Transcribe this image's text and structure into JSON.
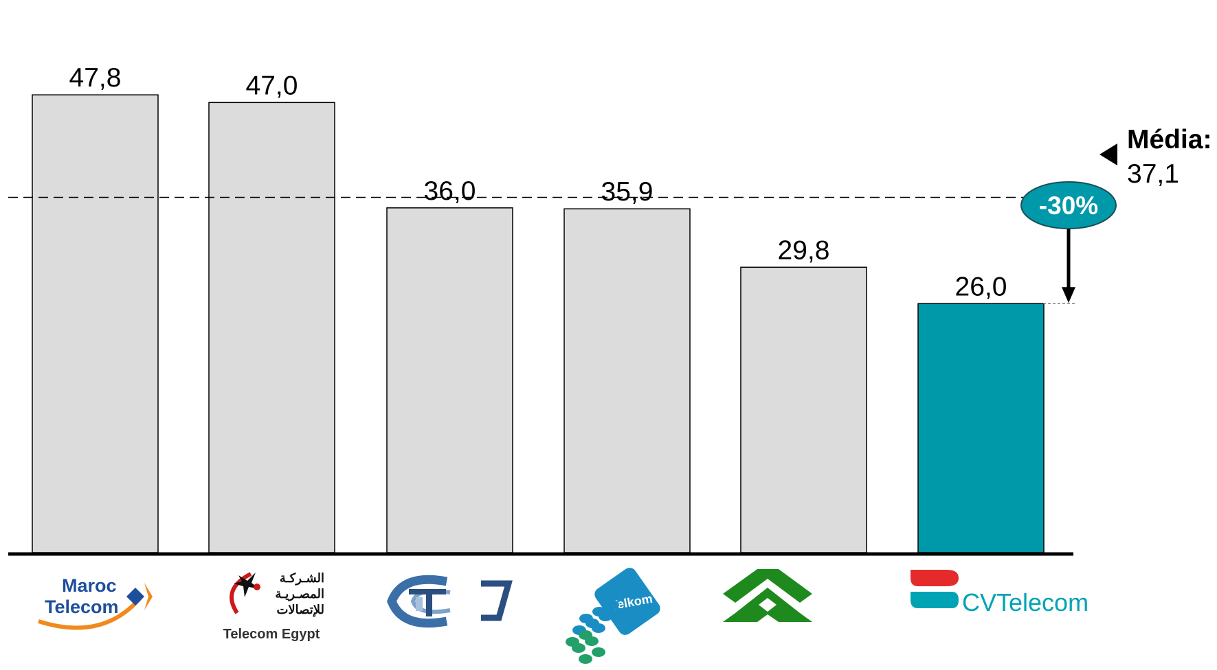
{
  "chart_data": {
    "type": "bar",
    "categories": [
      "Maroc Telecom",
      "Telecom Egypt",
      "Tunisie Telecom",
      "Telkom",
      "Algérie Télécom",
      "CV Telecom"
    ],
    "values": [
      47.8,
      47.0,
      36.0,
      35.9,
      29.8,
      26.0
    ],
    "value_labels": [
      "47,8",
      "47,0",
      "36,0",
      "35,9",
      "29,8",
      "26,0"
    ],
    "ylim": [
      0,
      50
    ],
    "grid": false,
    "highlight_index": 5,
    "colors": {
      "bar": "#dcdcdc",
      "highlight": "#0099aa",
      "badge": "#0099aa"
    },
    "average": {
      "title": "Média:",
      "value": 37.1,
      "label": "37,1"
    },
    "difference_label": "-30%"
  },
  "logos": {
    "maroc": {
      "line1": "Maroc",
      "line2": "Telecom",
      "icon": "maroc-telecom-logo"
    },
    "egypt": {
      "arabic1": "الشـركـة",
      "arabic2": "المصـريـة",
      "arabic3": "للإتصالات",
      "name": "Telecom Egypt",
      "icon": "telecom-egypt-logo"
    },
    "tunisie": {
      "icon": "tunisie-telecom-logo"
    },
    "telkom": {
      "name": "Telkom",
      "icon": "telkom-logo"
    },
    "algerie": {
      "icon": "algerie-telecom-logo"
    },
    "cv": {
      "name": "CVTelecom",
      "icon": "cv-telecom-logo"
    }
  }
}
